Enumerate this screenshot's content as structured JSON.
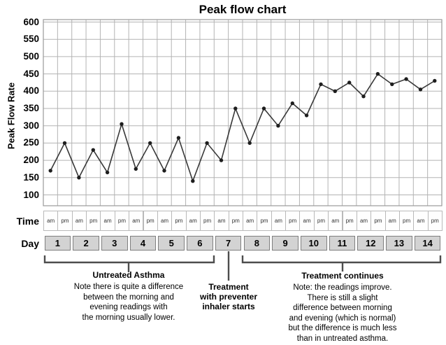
{
  "title": "Peak flow chart",
  "colors": {
    "grid": "#b3b3b3",
    "plot_border": "#9a9a9a",
    "line": "#383838",
    "marker": "#1e1e1e",
    "day_cell_bg": "#d3d3d3",
    "bracket": "#4d4d4d",
    "text": "#000000"
  },
  "chart_data": {
    "type": "line",
    "title": "Peak flow chart",
    "ylabel": "Peak Flow Rate",
    "ylim": [
      100,
      600
    ],
    "ytick_step": 50,
    "yticks": [
      600,
      550,
      500,
      450,
      400,
      350,
      300,
      250,
      200,
      150,
      100
    ],
    "grid": true,
    "x_axis": {
      "time_label": "Time",
      "day_label": "Day",
      "times": [
        "am",
        "pm"
      ],
      "days": [
        "1",
        "2",
        "3",
        "4",
        "5",
        "6",
        "7",
        "8",
        "9",
        "10",
        "11",
        "12",
        "13",
        "14"
      ]
    },
    "series": [
      {
        "name": "am",
        "values": [
          170,
          150,
          165,
          175,
          170,
          140,
          200,
          250,
          300,
          330,
          400,
          385,
          420,
          405
        ]
      },
      {
        "name": "pm",
        "values": [
          250,
          230,
          305,
          250,
          265,
          250,
          350,
          350,
          365,
          420,
          425,
          450,
          435,
          430
        ]
      }
    ]
  },
  "annotations": {
    "untreated": {
      "span_days": [
        1,
        6
      ],
      "title": "Untreated Asthma",
      "body": "Note there is quite a difference\nbetween the morning and\nevening readings with\nthe morning usually lower."
    },
    "treatment_start": {
      "span_days": [
        7,
        7
      ],
      "title": "Treatment\nwith preventer\ninhaler starts"
    },
    "treatment_continues": {
      "span_days": [
        8,
        14
      ],
      "title": "Treatment continues",
      "body": "Note: the readings improve.\nThere is still a slight\ndifference between morning\nand evening (which is normal)\nbut the difference is much less\nthan in untreated asthma."
    }
  }
}
